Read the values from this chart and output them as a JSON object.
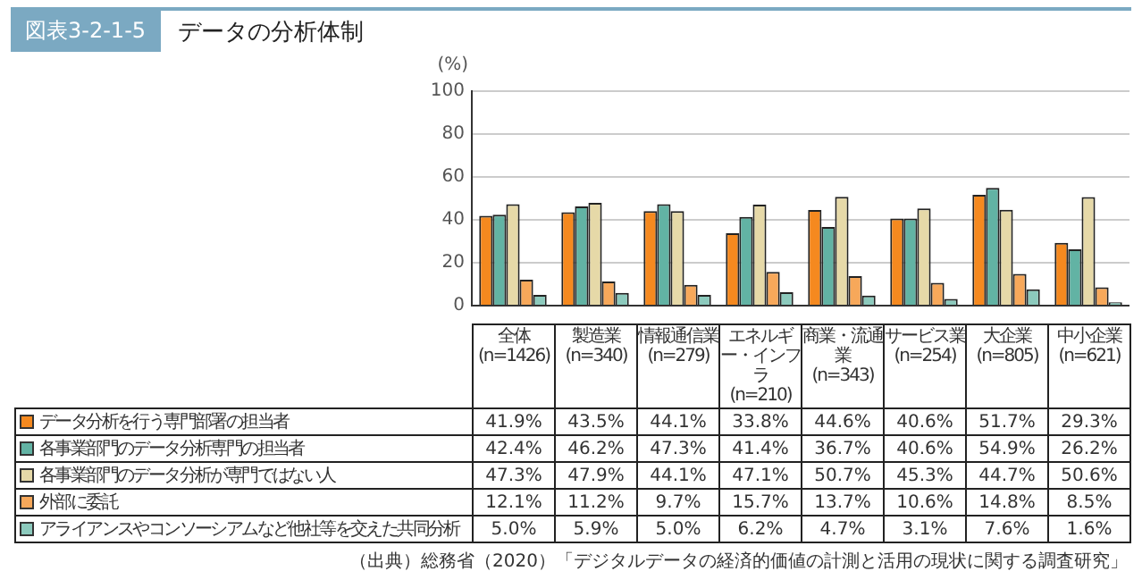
{
  "chart_data": {
    "type": "bar",
    "title": "データの分析体制",
    "subtitle": "図表3-2-1-5",
    "ylabel": "(%)",
    "categories": [
      "全体\n(n=1426)",
      "製造業\n(n=340)",
      "情報通信業\n(n=279)",
      "エネルギー・インフラ\n(n=210)",
      "商業・流通業\n(n=343)",
      "サービス業\n(n=254)",
      "大企業\n(n=805)",
      "中小企業\n(n=621)"
    ],
    "series": [
      {
        "name": "データ分析を行う専門部署の担当者",
        "color": "#f5891f",
        "values": [
          41.9,
          43.5,
          44.1,
          33.8,
          44.6,
          40.6,
          51.7,
          29.3
        ],
        "value_labels": [
          "41.9%",
          "43.5%",
          "44.1%",
          "33.8%",
          "44.6%",
          "40.6%",
          "51.7%",
          "29.3%"
        ]
      },
      {
        "name": "各事業部門のデータ分析専門の担当者",
        "color": "#62b3a4",
        "values": [
          42.4,
          46.2,
          47.3,
          41.4,
          36.7,
          40.6,
          54.9,
          26.2
        ],
        "value_labels": [
          "42.4%",
          "46.2%",
          "47.3%",
          "41.4%",
          "36.7%",
          "40.6%",
          "54.9%",
          "26.2%"
        ]
      },
      {
        "name": "各事業部門のデータ分析が専門ではない人",
        "color": "#e6d9a8",
        "values": [
          47.3,
          47.9,
          44.1,
          47.1,
          50.7,
          45.3,
          44.7,
          50.6
        ],
        "value_labels": [
          "47.3%",
          "47.9%",
          "44.1%",
          "47.1%",
          "50.7%",
          "45.3%",
          "44.7%",
          "50.6%"
        ]
      },
      {
        "name": "外部に委託",
        "color": "#f7a85a",
        "values": [
          12.1,
          11.2,
          9.7,
          15.7,
          13.7,
          10.6,
          14.8,
          8.5
        ],
        "value_labels": [
          "12.1%",
          "11.2%",
          "9.7%",
          "15.7%",
          "13.7%",
          "10.6%",
          "14.8%",
          "8.5%"
        ]
      },
      {
        "name": "アライアンスやコンソーシアムなど他社等を交えた共同分析",
        "color": "#8ccabd",
        "values": [
          5.0,
          5.9,
          5.0,
          6.2,
          4.7,
          3.1,
          7.6,
          1.6
        ],
        "value_labels": [
          "5.0%",
          "5.9%",
          "5.0%",
          "6.2%",
          "4.7%",
          "3.1%",
          "7.6%",
          "1.6%"
        ]
      }
    ],
    "legend": "bottom left",
    "ylim": [
      0,
      100
    ],
    "yticks": [
      0,
      20,
      40,
      60,
      80,
      100
    ],
    "grid": "y",
    "annotations": [
      "（出典）総務省（2020）「デジタルデータの経済的価値の計測と活用の現状に関する調査研究」"
    ]
  }
}
